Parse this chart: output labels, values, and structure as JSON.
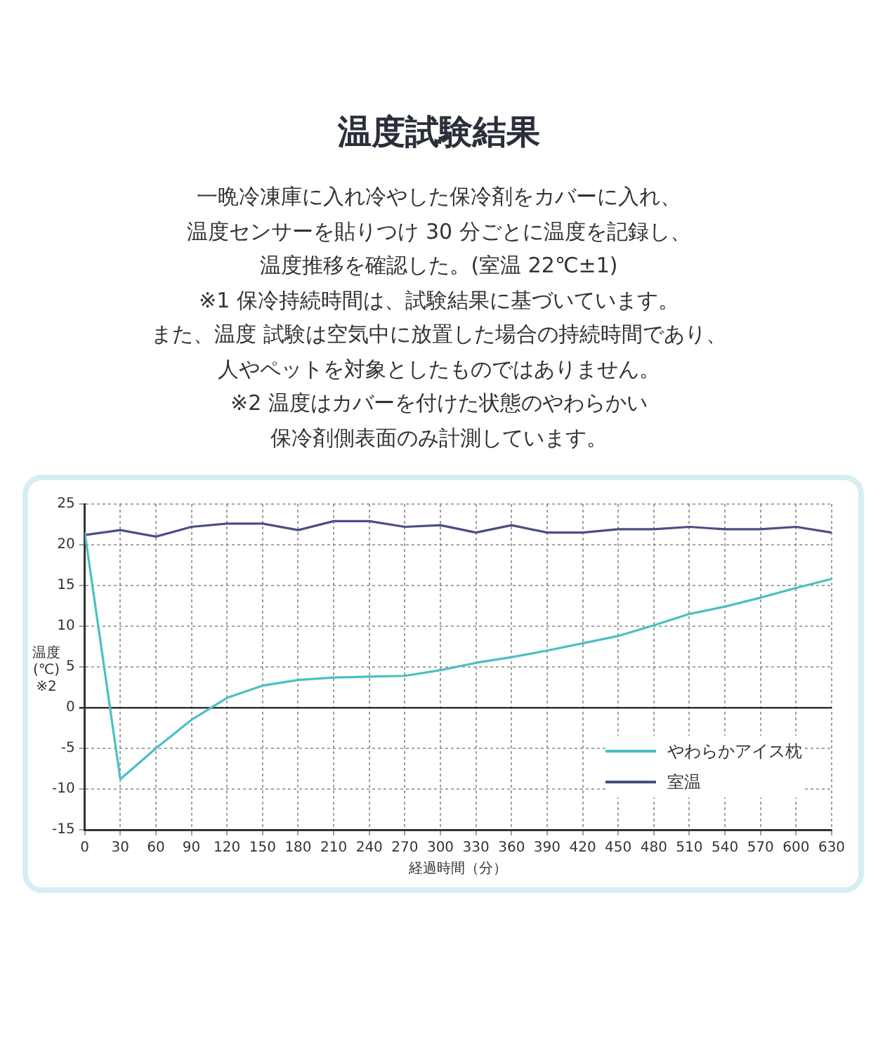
{
  "chart_data": {
    "type": "line",
    "title": "温度試験結果",
    "annotations": [
      "一晩冷凍庫に入れ冷やした保冷剤をカバーに入れ、",
      "温度センサーを貼りつけ 30 分ごとに温度を記録し、",
      "温度推移を確認した。(室温 22℃±1)",
      "※1 保冷持続時間は、試験結果に基づいています。",
      "また、温度 試験は空気中に放置した場合の持続時間であり、",
      "人やペットを対象としたものではありません。",
      "※2 温度はカバーを付けた状態のやわらかい",
      "保冷剤側表面のみ計測しています。"
    ],
    "xlabel": "経過時間（分）",
    "ylabel": "温度\n(℃)\n※2",
    "x": [
      0,
      30,
      60,
      90,
      120,
      150,
      180,
      210,
      240,
      270,
      300,
      330,
      360,
      390,
      420,
      450,
      480,
      510,
      540,
      570,
      600,
      630
    ],
    "series": [
      {
        "name": "やわらかアイス枕",
        "color": "#4bbfc4",
        "values": [
          21.5,
          -8.8,
          -5,
          -1.5,
          1.2,
          2.7,
          3.4,
          3.7,
          3.8,
          3.9,
          4.6,
          5.5,
          6.2,
          7,
          7.9,
          8.8,
          10.1,
          11.5,
          12.4,
          13.5,
          14.7,
          15.8
        ]
      },
      {
        "name": "室温",
        "color": "#4a4f85",
        "values": [
          21.2,
          21.8,
          21,
          22.2,
          22.6,
          22.6,
          21.8,
          22.9,
          22.9,
          22.2,
          22.4,
          21.5,
          22.4,
          21.5,
          21.5,
          21.9,
          21.9,
          22.2,
          21.9,
          21.9,
          22.2,
          21.5
        ]
      }
    ],
    "xlim": [
      0,
      630
    ],
    "xticks": [
      0,
      30,
      60,
      90,
      120,
      150,
      180,
      210,
      240,
      270,
      300,
      330,
      360,
      390,
      420,
      450,
      480,
      510,
      540,
      570,
      600,
      630
    ],
    "ylim": [
      -15,
      25
    ],
    "yticks": [
      -15,
      -10,
      -5,
      0,
      5,
      10,
      15,
      20,
      25
    ],
    "grid": true,
    "legend": "bottom right",
    "marker": "none",
    "line_style": "solid"
  }
}
